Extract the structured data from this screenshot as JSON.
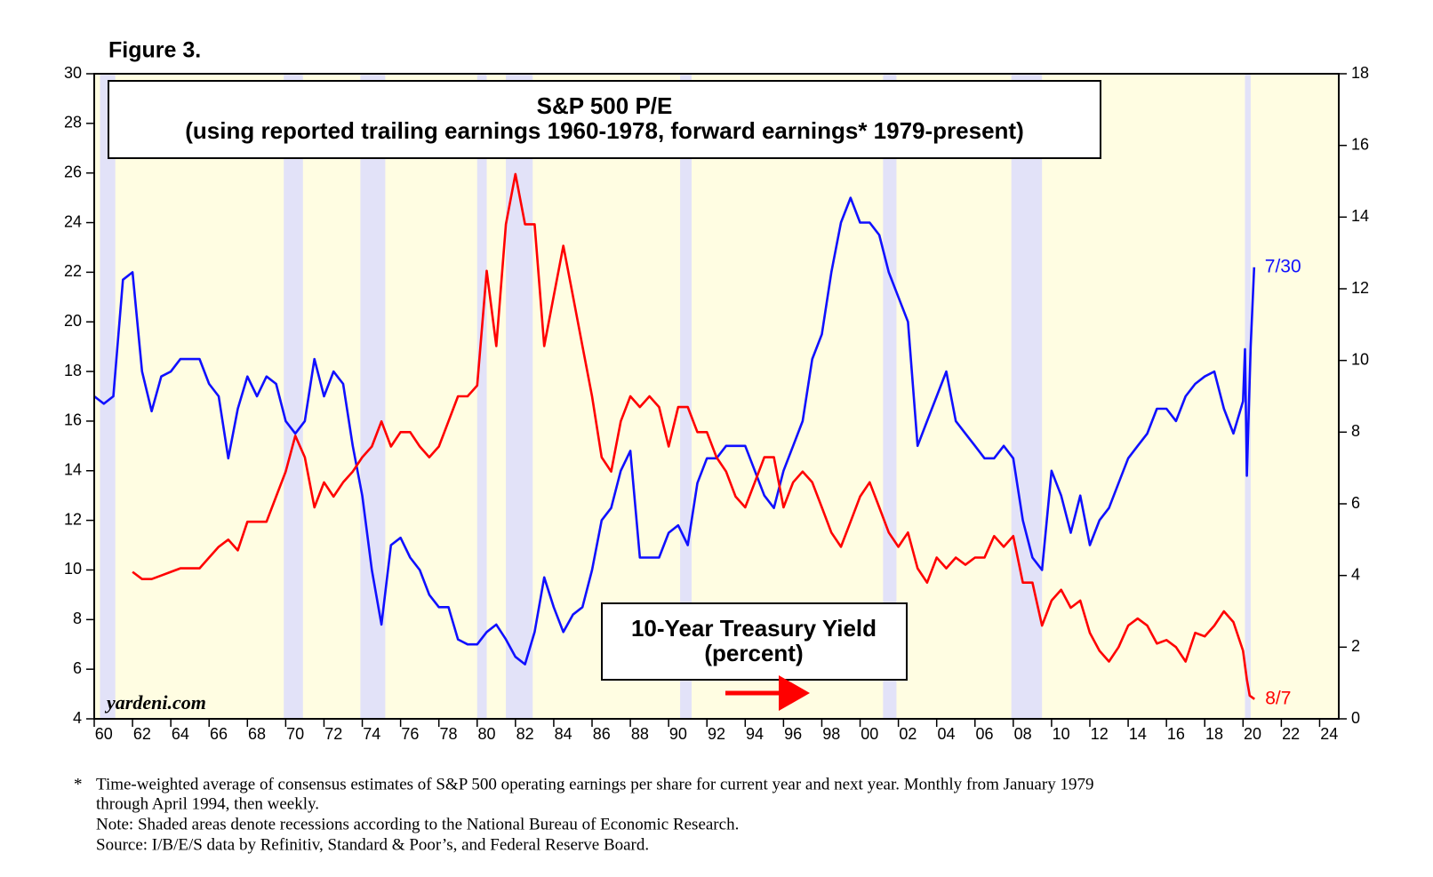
{
  "chart_data": {
    "type": "line",
    "title": "Figure 3.",
    "watermark": "yardeni.com",
    "xlim": [
      1960,
      2025
    ],
    "xticks": [
      {
        "value": 1960,
        "label": "60"
      },
      {
        "value": 1962,
        "label": "62"
      },
      {
        "value": 1964,
        "label": "64"
      },
      {
        "value": 1966,
        "label": "66"
      },
      {
        "value": 1968,
        "label": "68"
      },
      {
        "value": 1970,
        "label": "70"
      },
      {
        "value": 1972,
        "label": "72"
      },
      {
        "value": 1974,
        "label": "74"
      },
      {
        "value": 1976,
        "label": "76"
      },
      {
        "value": 1978,
        "label": "78"
      },
      {
        "value": 1980,
        "label": "80"
      },
      {
        "value": 1982,
        "label": "82"
      },
      {
        "value": 1984,
        "label": "84"
      },
      {
        "value": 1986,
        "label": "86"
      },
      {
        "value": 1988,
        "label": "88"
      },
      {
        "value": 1990,
        "label": "90"
      },
      {
        "value": 1992,
        "label": "92"
      },
      {
        "value": 1994,
        "label": "94"
      },
      {
        "value": 1996,
        "label": "96"
      },
      {
        "value": 1998,
        "label": "98"
      },
      {
        "value": 2000,
        "label": "00"
      },
      {
        "value": 2002,
        "label": "02"
      },
      {
        "value": 2004,
        "label": "04"
      },
      {
        "value": 2006,
        "label": "06"
      },
      {
        "value": 2008,
        "label": "08"
      },
      {
        "value": 2010,
        "label": "10"
      },
      {
        "value": 2012,
        "label": "12"
      },
      {
        "value": 2014,
        "label": "14"
      },
      {
        "value": 2016,
        "label": "16"
      },
      {
        "value": 2018,
        "label": "18"
      },
      {
        "value": 2020,
        "label": "20"
      },
      {
        "value": 2022,
        "label": "22"
      },
      {
        "value": 2024,
        "label": "24"
      }
    ],
    "ylim": [
      4,
      30
    ],
    "yticks": [
      4,
      6,
      8,
      10,
      12,
      14,
      16,
      18,
      20,
      22,
      24,
      26,
      28,
      30
    ],
    "y2lim": [
      0,
      18
    ],
    "y2ticks": [
      0,
      2,
      4,
      6,
      8,
      10,
      12,
      14,
      16,
      18
    ],
    "background": "#fffde2",
    "recession_color": "#e2e2f8",
    "recessions": [
      [
        1960.3,
        1961.1
      ],
      [
        1969.9,
        1970.9
      ],
      [
        1973.9,
        1975.2
      ],
      [
        1980.0,
        1980.5
      ],
      [
        1981.5,
        1982.9
      ],
      [
        1990.6,
        1991.2
      ],
      [
        2001.2,
        2001.9
      ],
      [
        2007.9,
        2009.5
      ],
      [
        2020.1,
        2020.4
      ]
    ],
    "series": [
      {
        "name": "S&P 500 P/E",
        "subtitle": "(using reported trailing earnings 1960-1978, forward earnings* 1979-present)",
        "color": "#1010ff",
        "axis": "y",
        "end_label": "7/30",
        "x": [
          1960,
          1960.5,
          1961,
          1961.5,
          1962,
          1962.5,
          1963,
          1963.5,
          1964,
          1964.5,
          1965,
          1965.5,
          1966,
          1966.5,
          1967,
          1967.5,
          1968,
          1968.5,
          1969,
          1969.5,
          1970,
          1970.5,
          1971,
          1971.5,
          1972,
          1972.5,
          1973,
          1973.5,
          1974,
          1974.5,
          1975,
          1975.5,
          1976,
          1976.5,
          1977,
          1977.5,
          1978,
          1978.5,
          1979,
          1979.5,
          1980,
          1980.5,
          1981,
          1981.5,
          1982,
          1982.5,
          1983,
          1983.5,
          1984,
          1984.5,
          1985,
          1985.5,
          1986,
          1986.5,
          1987,
          1987.5,
          1988,
          1988.5,
          1989,
          1989.5,
          1990,
          1990.5,
          1991,
          1991.5,
          1992,
          1992.5,
          1993,
          1993.5,
          1994,
          1994.5,
          1995,
          1995.5,
          1996,
          1996.5,
          1997,
          1997.5,
          1998,
          1998.5,
          1999,
          1999.5,
          2000,
          2000.5,
          2001,
          2001.5,
          2002,
          2002.5,
          2003,
          2003.5,
          2004,
          2004.5,
          2005,
          2005.5,
          2006,
          2006.5,
          2007,
          2007.5,
          2008,
          2008.5,
          2009,
          2009.5,
          2010,
          2010.5,
          2011,
          2011.5,
          2012,
          2012.5,
          2013,
          2013.5,
          2014,
          2014.5,
          2015,
          2015.5,
          2016,
          2016.5,
          2017,
          2017.5,
          2018,
          2018.5,
          2019,
          2019.5,
          2020,
          2020.1,
          2020.2,
          2020.4,
          2020.58
        ],
        "values": [
          17,
          16.7,
          17,
          21.7,
          22,
          18,
          16.4,
          17.8,
          18,
          18.5,
          18.5,
          18.5,
          17.5,
          17,
          14.5,
          16.5,
          17.8,
          17,
          17.8,
          17.5,
          16,
          15.5,
          16,
          18.5,
          17,
          18,
          17.5,
          15,
          13,
          10,
          7.8,
          11,
          11.3,
          10.5,
          10,
          9,
          8.5,
          8.5,
          7.2,
          7,
          7,
          7.5,
          7.8,
          7.2,
          6.5,
          6.2,
          7.5,
          9.7,
          8.5,
          7.5,
          8.2,
          8.5,
          10,
          12,
          12.5,
          14,
          14.8,
          10.5,
          10.5,
          10.5,
          11.5,
          11.8,
          11,
          13.5,
          14.5,
          14.5,
          15,
          15,
          15,
          14,
          13,
          12.5,
          14,
          15,
          16,
          18.5,
          19.5,
          22,
          24,
          25,
          24,
          24,
          23.5,
          22,
          21,
          20,
          15,
          16,
          17,
          18,
          16,
          15.5,
          15,
          14.5,
          14.5,
          15,
          14.5,
          12,
          10.5,
          10,
          14,
          13,
          11.5,
          13,
          11,
          12,
          12.5,
          13.5,
          14.5,
          15,
          15.5,
          16.5,
          16.5,
          16,
          17,
          17.5,
          17.8,
          18,
          16.5,
          15.5,
          16.8,
          18.9,
          13.8,
          19,
          22.2
        ]
      },
      {
        "name": "10-Year Treasury Yield",
        "subtitle": "(percent)",
        "color": "#ff0000",
        "axis": "y2",
        "end_label": "8/7",
        "x": [
          1962,
          1962.5,
          1963,
          1963.5,
          1964,
          1964.5,
          1965,
          1965.5,
          1966,
          1966.5,
          1967,
          1967.5,
          1968,
          1968.5,
          1969,
          1969.5,
          1970,
          1970.5,
          1971,
          1971.5,
          1972,
          1972.5,
          1973,
          1973.5,
          1974,
          1974.5,
          1975,
          1975.5,
          1976,
          1976.5,
          1977,
          1977.5,
          1978,
          1978.5,
          1979,
          1979.5,
          1980,
          1980.5,
          1981,
          1981.5,
          1982,
          1982.5,
          1983,
          1983.5,
          1984,
          1984.5,
          1985,
          1985.5,
          1986,
          1986.5,
          1987,
          1987.5,
          1988,
          1988.5,
          1989,
          1989.5,
          1990,
          1990.5,
          1991,
          1991.5,
          1992,
          1992.5,
          1993,
          1993.5,
          1994,
          1994.5,
          1995,
          1995.5,
          1996,
          1996.5,
          1997,
          1997.5,
          1998,
          1998.5,
          1999,
          1999.5,
          2000,
          2000.5,
          2001,
          2001.5,
          2002,
          2002.5,
          2003,
          2003.5,
          2004,
          2004.5,
          2005,
          2005.5,
          2006,
          2006.5,
          2007,
          2007.5,
          2008,
          2008.5,
          2009,
          2009.5,
          2010,
          2010.5,
          2011,
          2011.5,
          2012,
          2012.5,
          2013,
          2013.5,
          2014,
          2014.5,
          2015,
          2015.5,
          2016,
          2016.5,
          2017,
          2017.5,
          2018,
          2018.5,
          2019,
          2019.5,
          2020,
          2020.2,
          2020.35,
          2020.6
        ],
        "values": [
          4.1,
          3.9,
          3.9,
          4.0,
          4.1,
          4.2,
          4.2,
          4.2,
          4.5,
          4.8,
          5.0,
          4.7,
          5.5,
          5.5,
          5.5,
          6.2,
          6.9,
          7.9,
          7.3,
          5.9,
          6.6,
          6.2,
          6.6,
          6.9,
          7.3,
          7.6,
          8.3,
          7.6,
          8.0,
          8.0,
          7.6,
          7.3,
          7.6,
          8.3,
          9.0,
          9.0,
          9.3,
          12.5,
          10.4,
          13.8,
          15.2,
          13.8,
          13.8,
          10.4,
          11.8,
          13.2,
          11.8,
          10.4,
          9.0,
          7.3,
          6.9,
          8.3,
          9.0,
          8.7,
          9.0,
          8.7,
          7.6,
          8.7,
          8.7,
          8.0,
          8.0,
          7.3,
          6.9,
          6.2,
          5.9,
          6.6,
          7.3,
          7.3,
          5.9,
          6.6,
          6.9,
          6.6,
          5.9,
          5.2,
          4.8,
          5.5,
          6.2,
          6.6,
          5.9,
          5.2,
          4.8,
          5.2,
          4.2,
          3.8,
          4.5,
          4.2,
          4.5,
          4.3,
          4.5,
          4.5,
          5.1,
          4.8,
          5.1,
          3.8,
          3.8,
          2.6,
          3.3,
          3.6,
          3.1,
          3.3,
          2.4,
          1.9,
          1.6,
          2.0,
          2.6,
          2.8,
          2.6,
          2.1,
          2.2,
          2.0,
          1.6,
          2.4,
          2.3,
          2.6,
          3.0,
          2.7,
          1.9,
          1.1,
          0.65,
          0.55
        ]
      }
    ],
    "footnote_marker": "*",
    "footnotes": [
      "Time-weighted average of consensus estimates of S&P 500 operating earnings per share for current year and next year. Monthly from January 1979",
      "through April 1994, then weekly.",
      "Note: Shaded areas denote recessions according to the National Bureau of Economic Research.",
      "Source: I/B/E/S data by Refinitiv, Standard & Poor’s, and Federal Reserve Board."
    ]
  }
}
